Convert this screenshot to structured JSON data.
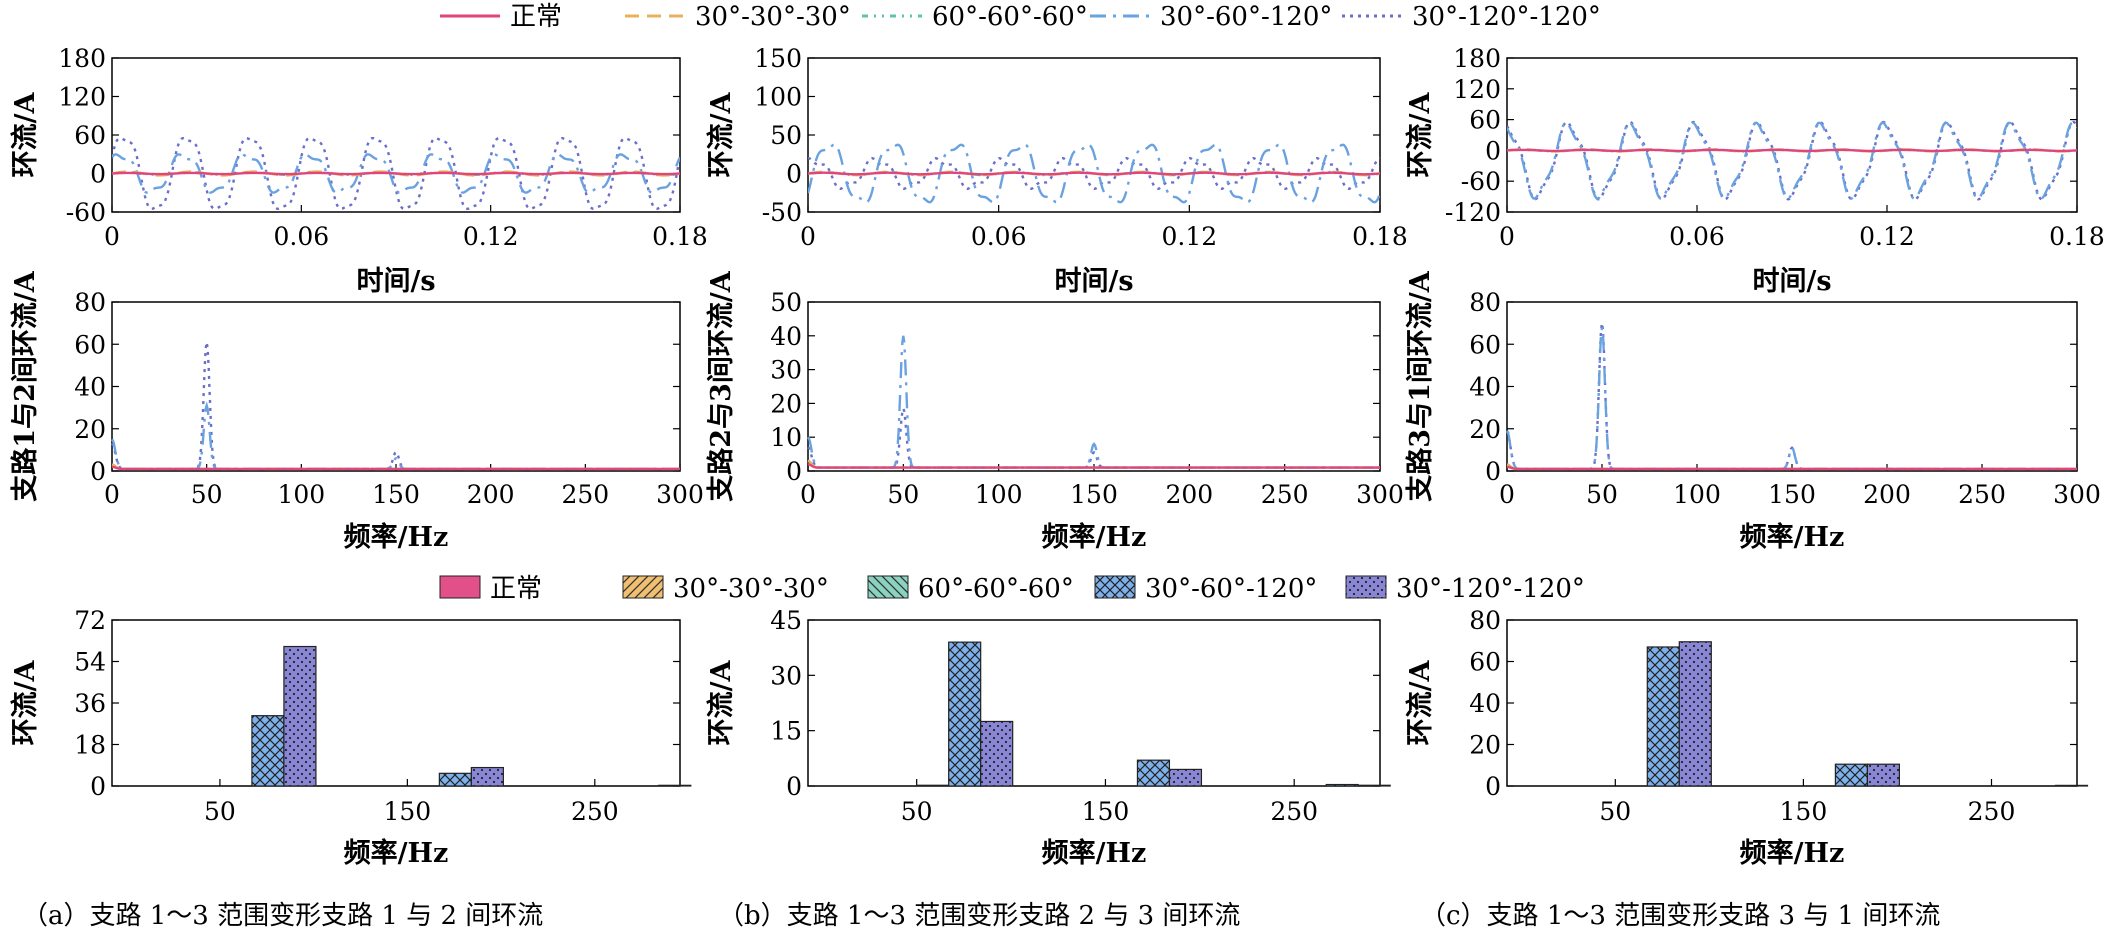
{
  "colors": {
    "normal": "#e0457b",
    "c30_30_30": "#e8b25c",
    "c60_60_60": "#5ec4ad",
    "c30_60_120": "#6aa2e0",
    "c30_120_120": "#6b6fc9",
    "bar_normal": "#e2508a",
    "bar_30_30_30": "#f0c070",
    "bar_60_60_60": "#8ad3c0",
    "bar_30_60_120": "#7eb0ec",
    "bar_30_120_120": "#8a86d6"
  },
  "legend_lines": [
    {
      "label": "正常",
      "color": "#e0457b",
      "style": "solid"
    },
    {
      "label": "30°-30°-30°",
      "color": "#e8b25c",
      "style": "dash"
    },
    {
      "label": "60°-60°-60°",
      "color": "#5ec4ad",
      "style": "dashdotdot"
    },
    {
      "label": "30°-60°-120°",
      "color": "#6aa2e0",
      "style": "dashdot"
    },
    {
      "label": "30°-120°-120°",
      "color": "#6b6fc9",
      "style": "dot"
    }
  ],
  "legend_bars": [
    {
      "label": "正常",
      "fill": "#e2508a",
      "pattern": "none"
    },
    {
      "label": "30°-30°-30°",
      "fill": "#f0c070",
      "pattern": "diag"
    },
    {
      "label": "60°-60°-60°",
      "fill": "#8ad3c0",
      "pattern": "backdiag"
    },
    {
      "label": "30°-60°-120°",
      "fill": "#7eb0ec",
      "pattern": "cross"
    },
    {
      "label": "30°-120°-120°",
      "fill": "#8a86d6",
      "pattern": "dots"
    }
  ],
  "captions": [
    "（a）支路 1～3 范围变形支路 1 与 2 间环流",
    "（b）支路 1～3 范围变形支路 2 与 3 间环流",
    "（c）支路 1～3 范围变形支路 3 与 1 间环流"
  ],
  "chart_data": [
    {
      "id": "a-time",
      "type": "line",
      "xlabel": "时间/s",
      "ylabel": "环流/A",
      "xlim": [
        0,
        0.18
      ],
      "ylim": [
        -60,
        180
      ],
      "xticks": [
        "0",
        "0.06",
        "0.12",
        "0.18"
      ],
      "yticks": [
        "-60",
        "0",
        "60",
        "120",
        "180"
      ],
      "series": [
        {
          "name": "正常",
          "offset": 0,
          "amplitude": 1,
          "frequency_hz": 50,
          "phase_deg": 0
        },
        {
          "name": "30°-30°-30°",
          "offset": 0,
          "amplitude": 3,
          "frequency_hz": 50,
          "phase_deg": 0
        },
        {
          "name": "60°-60°-60°",
          "offset": 0,
          "amplitude": 2,
          "frequency_hz": 50,
          "phase_deg": 0
        },
        {
          "name": "30°-60°-120°",
          "offset": 0,
          "amplitude": 30,
          "frequency_hz": 50,
          "phase_deg": 40,
          "third_harmonic": 6
        },
        {
          "name": "30°-120°-120°",
          "offset": 0,
          "amplitude": 60,
          "frequency_hz": 50,
          "phase_deg": 20,
          "third_harmonic": 8
        }
      ]
    },
    {
      "id": "b-time",
      "type": "line",
      "xlabel": "时间/s",
      "ylabel": "环流/A",
      "xlim": [
        0,
        0.18
      ],
      "ylim": [
        -50,
        150
      ],
      "xticks": [
        "0",
        "0.06",
        "0.12",
        "0.18"
      ],
      "yticks": [
        "-50",
        "0",
        "50",
        "100",
        "150"
      ],
      "series": [
        {
          "name": "正常",
          "offset": 0,
          "amplitude": 1,
          "frequency_hz": 50,
          "phase_deg": 0
        },
        {
          "name": "30°-30°-30°",
          "offset": 0,
          "amplitude": 2,
          "frequency_hz": 50,
          "phase_deg": 0
        },
        {
          "name": "60°-60°-60°",
          "offset": 0,
          "amplitude": 2,
          "frequency_hz": 50,
          "phase_deg": 0
        },
        {
          "name": "30°-60°-120°",
          "offset": 0,
          "amplitude": 39,
          "frequency_hz": 50,
          "phase_deg": -30,
          "third_harmonic": 7
        },
        {
          "name": "30°-120°-120°",
          "offset": 0,
          "amplitude": 18,
          "frequency_hz": 50,
          "phase_deg": 60,
          "third_harmonic": 5
        }
      ]
    },
    {
      "id": "c-time",
      "type": "line",
      "xlabel": "时间/s",
      "ylabel": "环流/A",
      "xlim": [
        0,
        0.18
      ],
      "ylim": [
        -120,
        180
      ],
      "xticks": [
        "0",
        "0.06",
        "0.12",
        "0.18"
      ],
      "yticks": [
        "-120",
        "-60",
        "0",
        "60",
        "120",
        "180"
      ],
      "series": [
        {
          "name": "正常",
          "offset": 0,
          "amplitude": 1,
          "frequency_hz": 50,
          "phase_deg": 0
        },
        {
          "name": "30°-30°-30°",
          "offset": 0,
          "amplitude": 2,
          "frequency_hz": 50,
          "phase_deg": 0
        },
        {
          "name": "60°-60°-60°",
          "offset": 0,
          "amplitude": 2,
          "frequency_hz": 50,
          "phase_deg": 0
        },
        {
          "name": "30°-60°-120°",
          "offset": -20,
          "amplitude": 68,
          "frequency_hz": 50,
          "phase_deg": 100,
          "third_harmonic": 10
        },
        {
          "name": "30°-120°-120°",
          "offset": -20,
          "amplitude": 70,
          "frequency_hz": 50,
          "phase_deg": 95,
          "third_harmonic": 10
        }
      ]
    },
    {
      "id": "a-freq",
      "type": "line",
      "xlabel": "频率/Hz",
      "ylabel": "支路1与2间环流/A",
      "xlim": [
        0,
        300
      ],
      "ylim": [
        0,
        80
      ],
      "xticks": [
        "0",
        "50",
        "100",
        "150",
        "200",
        "250",
        "300"
      ],
      "yticks": [
        "0",
        "20",
        "40",
        "60",
        "80"
      ],
      "series": [
        {
          "name": "正常",
          "peaks": [
            [
              0,
              1
            ]
          ]
        },
        {
          "name": "30°-30°-30°",
          "peaks": [
            [
              0,
              2
            ]
          ]
        },
        {
          "name": "60°-60°-60°",
          "peaks": [
            [
              0,
              2
            ]
          ]
        },
        {
          "name": "30°-60°-120°",
          "peaks": [
            [
              0,
              14
            ],
            [
              50,
              30
            ],
            [
              150,
              5
            ]
          ]
        },
        {
          "name": "30°-120°-120°",
          "peaks": [
            [
              0,
              12
            ],
            [
              50,
              60
            ],
            [
              150,
              8
            ]
          ]
        }
      ]
    },
    {
      "id": "b-freq",
      "type": "line",
      "xlabel": "频率/Hz",
      "ylabel": "支路2与3间环流/A",
      "xlim": [
        0,
        300
      ],
      "ylim": [
        0,
        50
      ],
      "xticks": [
        "0",
        "50",
        "100",
        "150",
        "200",
        "250",
        "300"
      ],
      "yticks": [
        "0",
        "10",
        "20",
        "30",
        "40",
        "50"
      ],
      "series": [
        {
          "name": "正常",
          "peaks": [
            [
              0,
              1
            ]
          ]
        },
        {
          "name": "30°-30°-30°",
          "peaks": [
            [
              0,
              2
            ]
          ]
        },
        {
          "name": "60°-60°-60°",
          "peaks": [
            [
              0,
              2
            ]
          ]
        },
        {
          "name": "30°-60°-120°",
          "peaks": [
            [
              0,
              9
            ],
            [
              50,
              39
            ],
            [
              150,
              7
            ]
          ]
        },
        {
          "name": "30°-120°-120°",
          "peaks": [
            [
              0,
              6
            ],
            [
              50,
              17.5
            ],
            [
              150,
              4.5
            ]
          ]
        }
      ]
    },
    {
      "id": "c-freq",
      "type": "line",
      "xlabel": "频率/Hz",
      "ylabel": "支路3与1间环流/A",
      "xlim": [
        0,
        300
      ],
      "ylim": [
        0,
        80
      ],
      "xticks": [
        "0",
        "50",
        "100",
        "150",
        "200",
        "250",
        "300"
      ],
      "yticks": [
        "0",
        "20",
        "40",
        "60",
        "80"
      ],
      "series": [
        {
          "name": "正常",
          "peaks": [
            [
              0,
              1
            ]
          ]
        },
        {
          "name": "30°-30°-30°",
          "peaks": [
            [
              0,
              2
            ]
          ]
        },
        {
          "name": "60°-60°-60°",
          "peaks": [
            [
              0,
              2
            ]
          ]
        },
        {
          "name": "30°-60°-120°",
          "peaks": [
            [
              0,
              18
            ],
            [
              50,
              67
            ],
            [
              150,
              10
            ]
          ]
        },
        {
          "name": "30°-120°-120°",
          "peaks": [
            [
              0,
              18
            ],
            [
              50,
              69
            ],
            [
              150,
              10
            ]
          ]
        }
      ]
    },
    {
      "id": "a-bar",
      "type": "bar",
      "xlabel": "频率/Hz",
      "ylabel": "环流/A",
      "categories": [
        "50",
        "150",
        "250"
      ],
      "ylim": [
        0,
        72
      ],
      "yticks": [
        "0",
        "18",
        "36",
        "54",
        "72"
      ],
      "series": [
        {
          "name": "正常",
          "values": [
            0,
            0,
            0
          ]
        },
        {
          "name": "30°-30°-30°",
          "values": [
            0,
            0,
            0
          ]
        },
        {
          "name": "60°-60°-60°",
          "values": [
            0,
            0,
            0
          ]
        },
        {
          "name": "30°-60°-120°",
          "values": [
            30.5,
            5.5,
            0
          ]
        },
        {
          "name": "30°-120°-120°",
          "values": [
            60.5,
            8,
            0.3
          ]
        }
      ]
    },
    {
      "id": "b-bar",
      "type": "bar",
      "xlabel": "频率/Hz",
      "ylabel": "环流/A",
      "categories": [
        "50",
        "150",
        "250"
      ],
      "ylim": [
        0,
        45
      ],
      "yticks": [
        "0",
        "15",
        "30",
        "45"
      ],
      "series": [
        {
          "name": "正常",
          "values": [
            0,
            0,
            0
          ]
        },
        {
          "name": "30°-30°-30°",
          "values": [
            0,
            0,
            0
          ]
        },
        {
          "name": "60°-60°-60°",
          "values": [
            0.2,
            0,
            0
          ]
        },
        {
          "name": "30°-60°-120°",
          "values": [
            39,
            7,
            0.4
          ]
        },
        {
          "name": "30°-120°-120°",
          "values": [
            17.5,
            4.5,
            0.2
          ]
        }
      ]
    },
    {
      "id": "c-bar",
      "type": "bar",
      "xlabel": "频率/Hz",
      "ylabel": "环流/A",
      "categories": [
        "50",
        "150",
        "250"
      ],
      "ylim": [
        0,
        80
      ],
      "yticks": [
        "0",
        "20",
        "40",
        "60",
        "80"
      ],
      "series": [
        {
          "name": "正常",
          "values": [
            0,
            0,
            0
          ]
        },
        {
          "name": "30°-30°-30°",
          "values": [
            0,
            0,
            0
          ]
        },
        {
          "name": "60°-60°-60°",
          "values": [
            0,
            0,
            0
          ]
        },
        {
          "name": "30°-60°-120°",
          "values": [
            67,
            10.5,
            0
          ]
        },
        {
          "name": "30°-120°-120°",
          "values": [
            69.5,
            10.5,
            0.3
          ]
        }
      ]
    }
  ]
}
